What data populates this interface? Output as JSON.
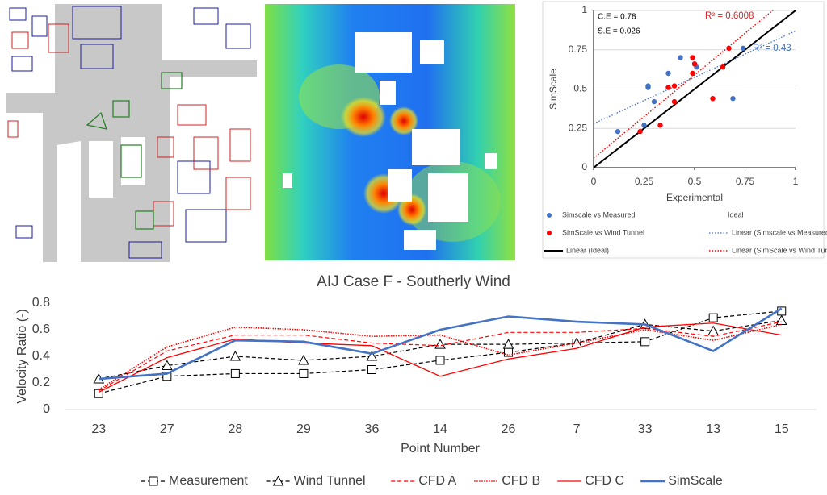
{
  "chart_data": [
    {
      "type": "scatter",
      "x_label": "Experimental",
      "y_label": "SimScale",
      "xlim": [
        0,
        1
      ],
      "ylim": [
        0,
        1
      ],
      "xticks": [
        0,
        0.25,
        0.5,
        0.75,
        1
      ],
      "yticks": [
        0,
        0.25,
        0.5,
        0.75,
        1
      ],
      "grid": true,
      "annotations": [
        {
          "text": "C.E = 0.78",
          "color": "#000000"
        },
        {
          "text": "S.E = 0.026",
          "color": "#000000"
        },
        {
          "text": "R² = 0.6008",
          "color": "#e02020"
        },
        {
          "text": "R² = 0.43",
          "color": "#4472c4"
        }
      ],
      "series": [
        {
          "name": "Simscale vs Measured",
          "kind": "points",
          "color": "#4472c4",
          "x": [
            0.12,
            0.25,
            0.27,
            0.27,
            0.3,
            0.37,
            0.43,
            0.5,
            0.51,
            0.69,
            0.74
          ],
          "values": [
            0.23,
            0.27,
            0.52,
            0.51,
            0.42,
            0.6,
            0.7,
            0.66,
            0.64,
            0.44,
            0.76
          ]
        },
        {
          "name": "Ideal",
          "kind": "points",
          "color": "none",
          "x": [],
          "values": []
        },
        {
          "name": "SimScale vs Wind Tunnel",
          "kind": "points",
          "color": "#ff0000",
          "x": [
            0.23,
            0.33,
            0.4,
            0.37,
            0.4,
            0.49,
            0.49,
            0.5,
            0.64,
            0.59,
            0.67
          ],
          "values": [
            0.23,
            0.27,
            0.52,
            0.51,
            0.42,
            0.6,
            0.7,
            0.66,
            0.64,
            0.44,
            0.76
          ]
        },
        {
          "name": "Linear (Simscale vs Measured)",
          "kind": "line",
          "color": "#4472c4",
          "dash": "1.5 2",
          "width": 1.3,
          "x": [
            0,
            1
          ],
          "values": [
            0.28,
            0.87
          ]
        },
        {
          "name": "Linear (Ideal)",
          "kind": "line",
          "color": "#000000",
          "dash": "none",
          "width": 2,
          "x": [
            0,
            1
          ],
          "values": [
            0,
            1
          ]
        },
        {
          "name": "Linear (SimScale vs Wind Tunnel)",
          "kind": "line",
          "color": "#ff0000",
          "dash": "1.5 2",
          "width": 1.5,
          "x": [
            0,
            1
          ],
          "values": [
            0.06,
            1.12
          ]
        }
      ]
    },
    {
      "type": "line",
      "title": "AIJ Case F - Southerly Wind",
      "x_label": "Point Number",
      "y_label": "Velocity Ratio (-)",
      "categories": [
        "23",
        "27",
        "28",
        "29",
        "36",
        "14",
        "26",
        "7",
        "33",
        "13",
        "15"
      ],
      "ylim": [
        0,
        0.8
      ],
      "yticks": [
        0,
        0.2,
        0.4,
        0.6,
        0.8
      ],
      "series": [
        {
          "name": "Measurement",
          "color": "#000000",
          "dash": "5 3",
          "width": 1.2,
          "marker": "square",
          "values": [
            0.12,
            0.25,
            0.27,
            0.27,
            0.3,
            0.37,
            0.43,
            0.5,
            0.51,
            0.69,
            0.74
          ]
        },
        {
          "name": "Wind Tunnel",
          "color": "#000000",
          "dash": "5 3",
          "width": 1.2,
          "marker": "triangle",
          "values": [
            0.23,
            0.33,
            0.4,
            0.37,
            0.4,
            0.49,
            0.49,
            0.5,
            0.64,
            0.59,
            0.67
          ]
        },
        {
          "name": "CFD A",
          "color": "#ff0000",
          "dash": "5 3",
          "width": 1.2,
          "marker": "none",
          "values": [
            0.14,
            0.44,
            0.56,
            0.56,
            0.5,
            0.48,
            0.58,
            0.58,
            0.61,
            0.55,
            0.66
          ]
        },
        {
          "name": "CFD B",
          "color": "#ff0000",
          "dash": "1.5 1.5",
          "width": 1.6,
          "marker": "none",
          "values": [
            0.15,
            0.47,
            0.62,
            0.6,
            0.55,
            0.56,
            0.41,
            0.5,
            0.6,
            0.52,
            0.64
          ]
        },
        {
          "name": "CFD C",
          "color": "#ff0000",
          "dash": "none",
          "width": 1.3,
          "marker": "none",
          "values": [
            0.13,
            0.39,
            0.53,
            0.5,
            0.48,
            0.25,
            0.38,
            0.46,
            0.62,
            0.65,
            0.56
          ]
        },
        {
          "name": "SimScale",
          "color": "#4472c4",
          "dash": "none",
          "width": 2.6,
          "marker": "none",
          "values": [
            0.23,
            0.27,
            0.52,
            0.51,
            0.42,
            0.6,
            0.7,
            0.66,
            0.64,
            0.44,
            0.76
          ]
        }
      ]
    }
  ]
}
